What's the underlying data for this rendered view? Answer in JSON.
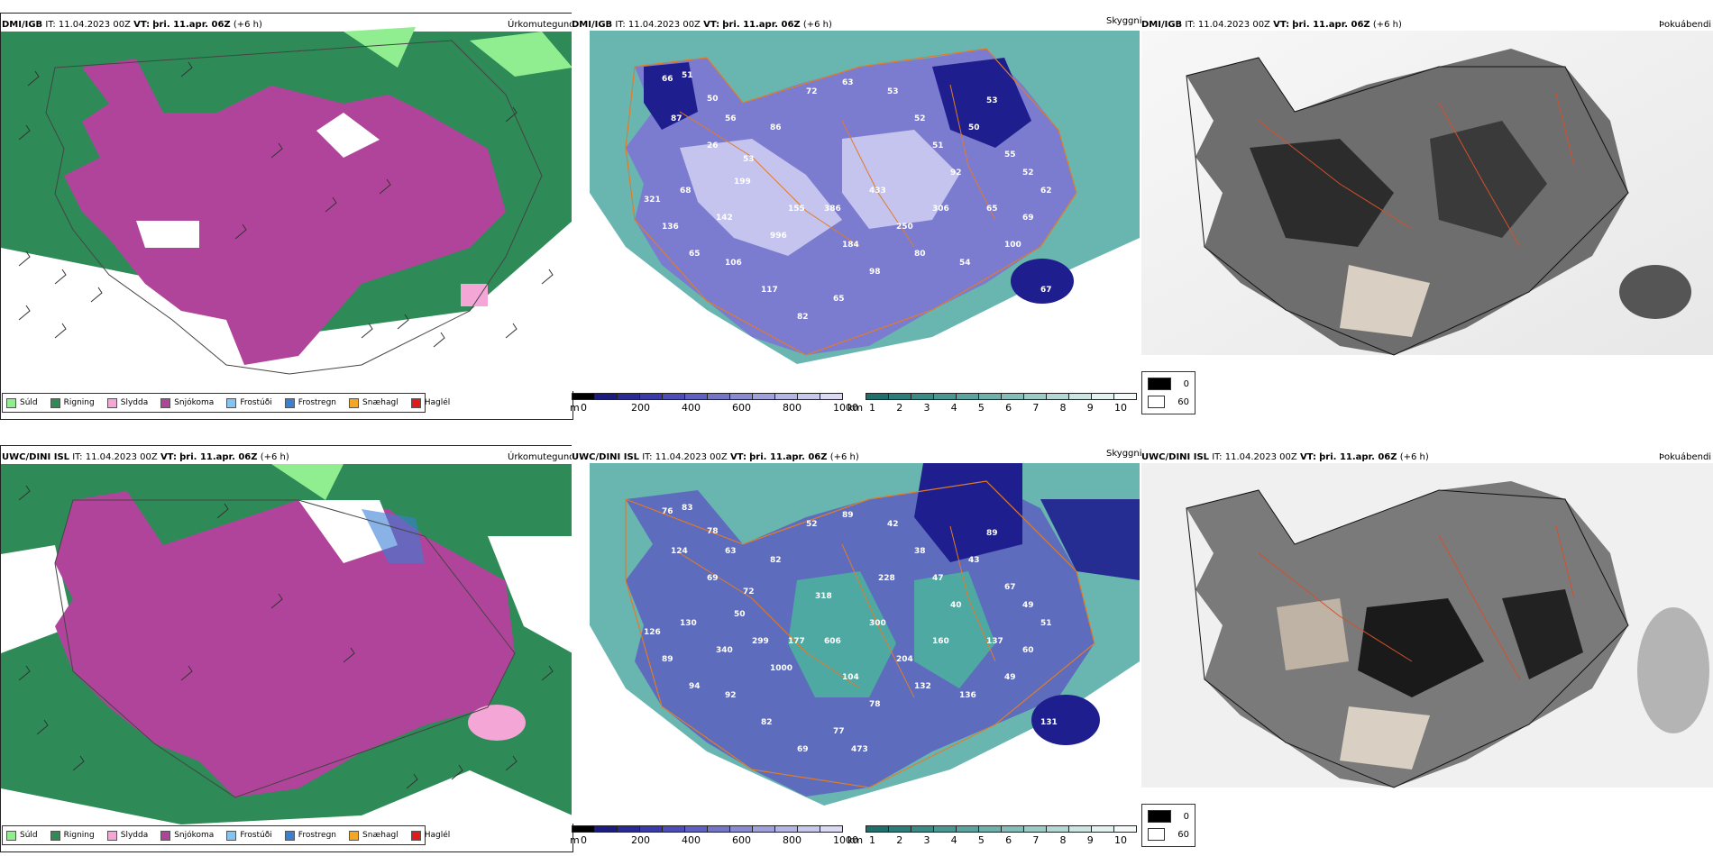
{
  "rows": [
    {
      "model": "DMI/IGB",
      "it_label": "IT:",
      "it_value": "11.04.2023 00Z",
      "vt_label": "VT:",
      "vt_value": "þri. 11.apr. 06Z",
      "offset": "(+6 h)",
      "panels": [
        {
          "title": "Úrkomutegund"
        },
        {
          "title": "Skyggni"
        },
        {
          "title": "Þokuábendi"
        }
      ],
      "visibility_values": [
        "66",
        "51",
        "50",
        "56",
        "26",
        "87",
        "53",
        "68",
        "199",
        "86",
        "72",
        "63",
        "53",
        "52",
        "51",
        "92",
        "50",
        "53",
        "55",
        "52",
        "62",
        "69",
        "100",
        "65",
        "67",
        "54",
        "80",
        "98",
        "65",
        "82",
        "117",
        "106",
        "65",
        "136",
        "321",
        "996",
        "386",
        "433",
        "250",
        "306",
        "184",
        "155",
        "142"
      ]
    },
    {
      "model": "UWC/DINI ISL",
      "it_label": "IT:",
      "it_value": "11.04.2023 00Z",
      "vt_label": "VT:",
      "vt_value": "þri. 11.apr. 06Z",
      "offset": "(+6 h)",
      "panels": [
        {
          "title": "Úrkomutegund"
        },
        {
          "title": "Skyggni"
        },
        {
          "title": "Þokuábendi"
        }
      ],
      "visibility_values": [
        "76",
        "83",
        "78",
        "63",
        "69",
        "124",
        "72",
        "130",
        "50",
        "82",
        "52",
        "89",
        "42",
        "38",
        "47",
        "40",
        "43",
        "89",
        "67",
        "49",
        "51",
        "60",
        "49",
        "137",
        "131",
        "136",
        "132",
        "78",
        "77",
        "69",
        "82",
        "92",
        "94",
        "89",
        "126",
        "1000",
        "606",
        "300",
        "204",
        "160",
        "104",
        "177",
        "340",
        "228",
        "318",
        "299",
        "473"
      ]
    }
  ],
  "precip_legend": [
    {
      "label": "Súld",
      "color": "#90ee90"
    },
    {
      "label": "Rigning",
      "color": "#2e8b57"
    },
    {
      "label": "Slydda",
      "color": "#f4a6d7"
    },
    {
      "label": "Snjókoma",
      "color": "#b0449a"
    },
    {
      "label": "Frostúði",
      "color": "#87c3f0"
    },
    {
      "label": "Frostregn",
      "color": "#3a7fd5"
    },
    {
      "label": "Snæhagl",
      "color": "#f5a623"
    },
    {
      "label": "Haglél",
      "color": "#e01b1b"
    }
  ],
  "cbar_m": {
    "unit": "m",
    "ticks": [
      "0",
      "200",
      "400",
      "600",
      "800",
      "1000"
    ]
  },
  "cbar_km": {
    "unit": "km",
    "ticks": [
      "1",
      "2",
      "3",
      "4",
      "5",
      "6",
      "7",
      "8",
      "9",
      "10"
    ]
  },
  "fog_legend": [
    "0",
    "60"
  ],
  "colors": {
    "rain": "#2e8b57",
    "drizzle": "#90ee90",
    "snow": "#b0449a",
    "vis_low": "#1e1e8f",
    "vis_mid": "#7b7bd0",
    "vis_high": "#c4c4ee",
    "vis_sea": "#4fa9a3"
  }
}
